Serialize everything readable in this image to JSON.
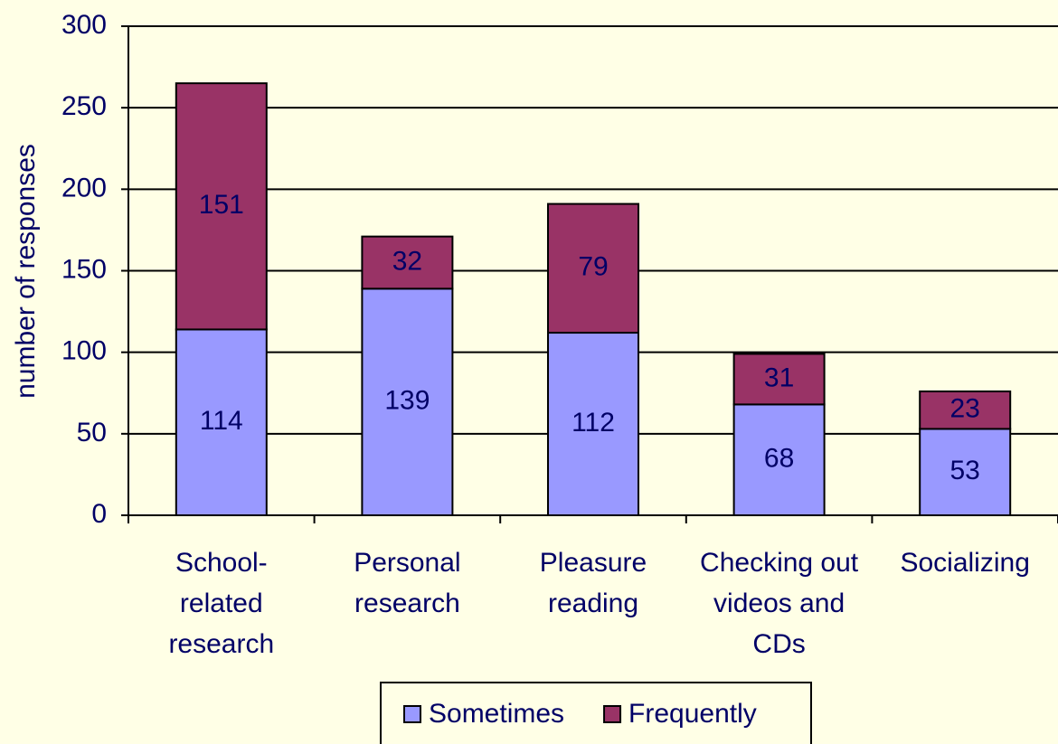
{
  "chart_data": {
    "type": "stacked_bar",
    "ylabel": "number of responses",
    "categories": [
      "School-related research",
      "Personal research",
      "Pleasure reading",
      "Checking out videos and CDs",
      "Socializing"
    ],
    "series": [
      {
        "name": "Sometimes",
        "color": "#9999ff",
        "values": [
          114,
          139,
          112,
          68,
          53
        ]
      },
      {
        "name": "Frequently",
        "color": "#993366",
        "values": [
          151,
          32,
          79,
          31,
          23
        ]
      }
    ],
    "ylim": [
      0,
      300
    ],
    "yticks": [
      0,
      50,
      100,
      150,
      200,
      250,
      300
    ],
    "grid": true,
    "legend": "bottom"
  }
}
